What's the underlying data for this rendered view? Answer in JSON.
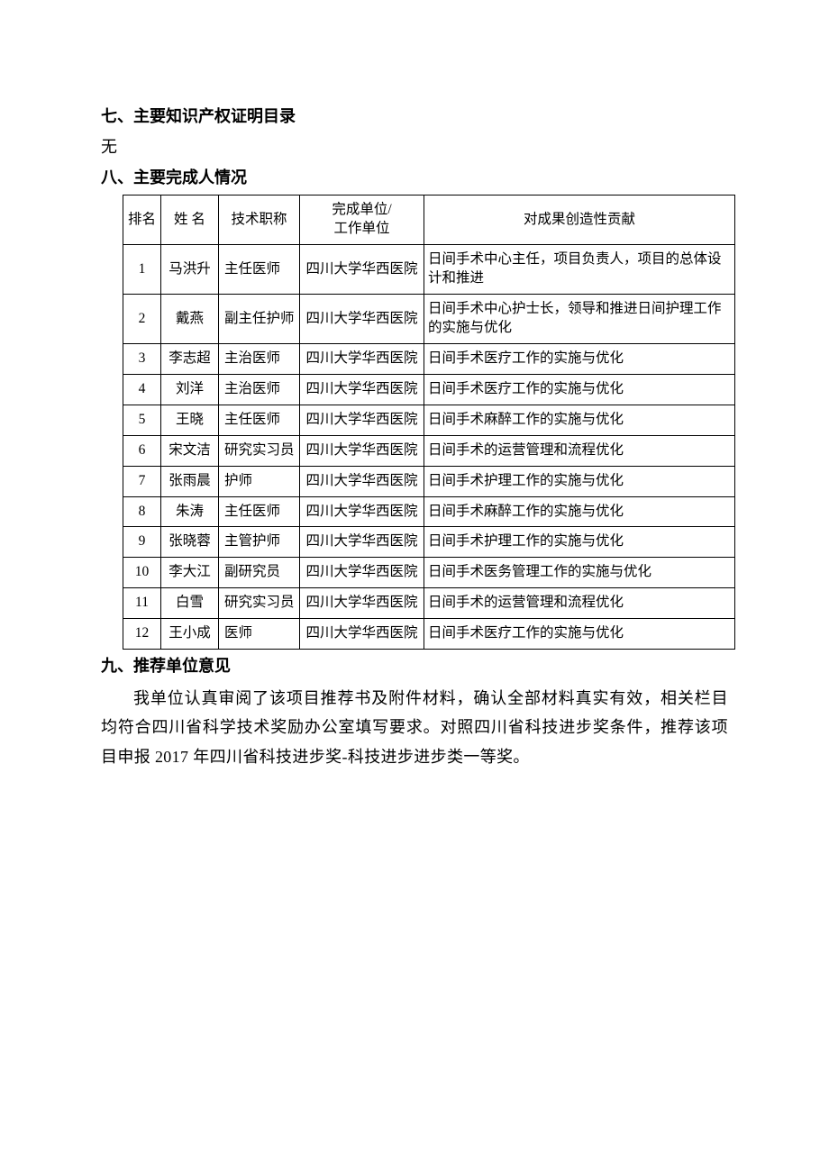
{
  "sections": {
    "seven": {
      "heading": "七、主要知识产权证明目录",
      "body": "无"
    },
    "eight": {
      "heading": "八、主要完成人情况"
    },
    "nine": {
      "heading": "九、推荐单位意见",
      "paragraph": "我单位认真审阅了该项目推荐书及附件材料，确认全部材料真实有效，相关栏目均符合四川省科学技术奖励办公室填写要求。对照四川省科技进步奖条件，推荐该项目申报 2017 年四川省科技进步奖-科技进步进步类一等奖。"
    }
  },
  "table": {
    "headers": {
      "rank": "排名",
      "name": "姓 名",
      "title": "技术职称",
      "unit_line1": "完成单位/",
      "unit_line2": "工作单位",
      "contribution": "对成果创造性贡献"
    },
    "rows": [
      {
        "rank": "1",
        "name": "马洪升",
        "title": "主任医师",
        "unit": "四川大学华西医院",
        "contribution": "日间手术中心主任，项目负责人，项目的总体设计和推进"
      },
      {
        "rank": "2",
        "name": "戴燕",
        "title": "副主任护师",
        "unit": "四川大学华西医院",
        "contribution": "日间手术中心护士长，领导和推进日间护理工作的实施与优化"
      },
      {
        "rank": "3",
        "name": "李志超",
        "title": "主治医师",
        "unit": "四川大学华西医院",
        "contribution": "日间手术医疗工作的实施与优化"
      },
      {
        "rank": "4",
        "name": "刘洋",
        "title": "主治医师",
        "unit": "四川大学华西医院",
        "contribution": "日间手术医疗工作的实施与优化"
      },
      {
        "rank": "5",
        "name": "王晓",
        "title": "主任医师",
        "unit": "四川大学华西医院",
        "contribution": "日间手术麻醉工作的实施与优化"
      },
      {
        "rank": "6",
        "name": "宋文洁",
        "title": "研究实习员",
        "unit": "四川大学华西医院",
        "contribution": "日间手术的运营管理和流程优化"
      },
      {
        "rank": "7",
        "name": "张雨晨",
        "title": "护师",
        "unit": "四川大学华西医院",
        "contribution": "日间手术护理工作的实施与优化"
      },
      {
        "rank": "8",
        "name": "朱涛",
        "title": "主任医师",
        "unit": "四川大学华西医院",
        "contribution": "日间手术麻醉工作的实施与优化"
      },
      {
        "rank": "9",
        "name": "张晓蓉",
        "title": "主管护师",
        "unit": "四川大学华西医院",
        "contribution": "日间手术护理工作的实施与优化"
      },
      {
        "rank": "10",
        "name": "李大江",
        "title": "副研究员",
        "unit": "四川大学华西医院",
        "contribution": "日间手术医务管理工作的实施与优化"
      },
      {
        "rank": "11",
        "name": "白雪",
        "title": "研究实习员",
        "unit": "四川大学华西医院",
        "contribution": "日间手术的运营管理和流程优化"
      },
      {
        "rank": "12",
        "name": "王小成",
        "title": "医师",
        "unit": "四川大学华西医院",
        "contribution": "日间手术医疗工作的实施与优化"
      }
    ],
    "style": {
      "border_color": "#000000",
      "font_size": 15.5,
      "col_widths": {
        "rank": 42,
        "name": 64,
        "title": 90,
        "unit": 138
      }
    }
  },
  "style": {
    "page_background": "#ffffff",
    "text_color": "#000000",
    "heading_font": "SimHei",
    "body_font": "SimSun",
    "heading_fontsize": 18,
    "body_fontsize": 18
  }
}
